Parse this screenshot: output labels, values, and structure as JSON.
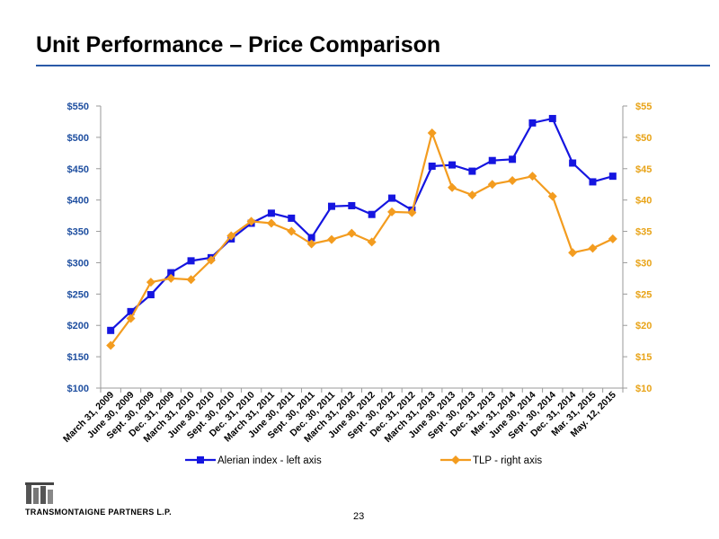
{
  "slide": {
    "title": "Unit Performance – Price Comparison",
    "page_number": "23",
    "company": "TRANSMONTAIGNE PARTNERS L.P."
  },
  "colors": {
    "title_rule": "#2a5aa8",
    "left_axis_text": "#1f4fa0",
    "right_axis_text": "#e8a317",
    "alerian_series": "#1515e0",
    "tlp_series": "#f39c1f"
  },
  "chart_data": {
    "type": "line",
    "title": "",
    "categories": [
      "March 31, 2009",
      "June 30, 2009",
      "Sept. 30, 2009",
      "Dec. 31, 2009",
      "March 31, 2010",
      "June 30, 2010",
      "Sept. 30, 2010",
      "Dec. 31, 2010",
      "March 31, 2011",
      "June 30, 2011",
      "Sept. 30, 2011",
      "Dec. 30, 2011",
      "March 31, 2012",
      "June 30, 2012",
      "Sept. 30, 2012",
      "Dec. 31, 2012",
      "March 31, 2013",
      "June 30, 2013",
      "Sept. 30, 2013",
      "Dec. 31, 2013",
      "Mar. 31, 2014",
      "June 30, 2014",
      "Sept. 30, 2014",
      "Dec. 31, 2014",
      "Mar. 31, 2015",
      "May. 12, 2015"
    ],
    "left_axis": {
      "ylim": [
        100,
        550
      ],
      "ticks": [
        "$100",
        "$150",
        "$200",
        "$250",
        "$300",
        "$350",
        "$400",
        "$450",
        "$500",
        "$550"
      ]
    },
    "right_axis": {
      "ylim": [
        10,
        55
      ],
      "ticks": [
        "$10",
        "$15",
        "$20",
        "$25",
        "$30",
        "$35",
        "$40",
        "$45",
        "$50",
        "$55"
      ]
    },
    "series": [
      {
        "name": "Alerian index - left axis",
        "axis": "left",
        "marker": "square",
        "values": [
          192,
          222,
          249,
          284,
          303,
          308,
          338,
          363,
          379,
          371,
          340,
          390,
          391,
          377,
          403,
          384,
          454,
          456,
          446,
          463,
          465,
          523,
          530,
          459,
          429,
          438
        ]
      },
      {
        "name": "TLP - right axis",
        "axis": "right",
        "marker": "diamond",
        "values": [
          16.8,
          21.1,
          26.9,
          27.5,
          27.3,
          30.4,
          34.3,
          36.6,
          36.3,
          35.0,
          33.0,
          33.7,
          34.7,
          33.3,
          38.1,
          38.0,
          50.7,
          42.0,
          40.8,
          42.5,
          43.1,
          43.8,
          40.6,
          31.6,
          32.3,
          33.8
        ]
      }
    ],
    "grid": false,
    "legend_placement": "bottom"
  }
}
